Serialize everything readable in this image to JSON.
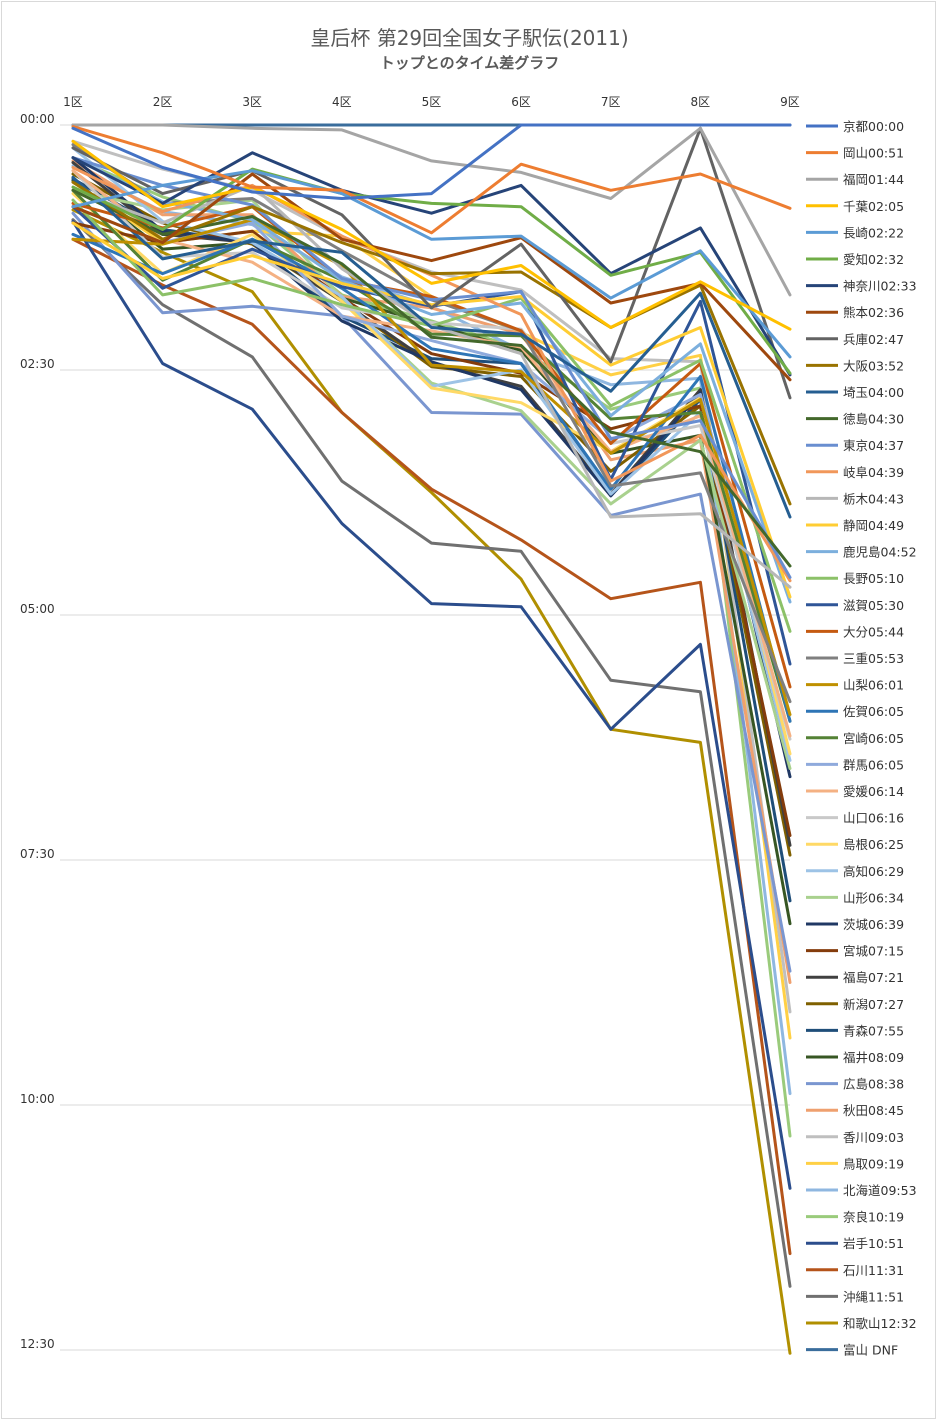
{
  "title": "皇后杯 第29回全国女子駅伝(2011)",
  "subtitle": "トップとのタイム差グラフ",
  "chart_data": {
    "type": "line",
    "categories": [
      "1区",
      "2区",
      "3区",
      "4区",
      "5区",
      "6区",
      "7区",
      "8区",
      "9区"
    ],
    "y_tick_labels": [
      "00:00",
      "02:30",
      "05:00",
      "07:30",
      "10:00",
      "12:30"
    ],
    "ylim_seconds": [
      0,
      750
    ],
    "y_inverted": true,
    "grid": "horizontal",
    "legend_position": "right",
    "units": "seconds behind leader",
    "series": [
      {
        "name": "京都",
        "legend": "京都00:00",
        "color": "#4472c4",
        "values": [
          2,
          26,
          41,
          45,
          42,
          0,
          0,
          0,
          0
        ]
      },
      {
        "name": "岡山",
        "legend": "岡山00:51",
        "color": "#ed7d31",
        "values": [
          1,
          17,
          38,
          40,
          66,
          24,
          40,
          30,
          51
        ]
      },
      {
        "name": "福岡",
        "legend": "福岡01:44",
        "color": "#a5a5a5",
        "values": [
          0,
          0,
          2,
          3,
          22,
          29,
          45,
          2,
          104
        ]
      },
      {
        "name": "千葉",
        "legend": "千葉02:05",
        "color": "#ffc000",
        "values": [
          10,
          50,
          38,
          64,
          97,
          86,
          124,
          96,
          125
        ]
      },
      {
        "name": "長崎",
        "legend": "長崎02:22",
        "color": "#5b9bd5",
        "values": [
          50,
          37,
          28,
          42,
          70,
          68,
          106,
          77,
          142
        ]
      },
      {
        "name": "愛知",
        "legend": "愛知02:32",
        "color": "#70ad47",
        "values": [
          38,
          64,
          27,
          42,
          48,
          50,
          92,
          78,
          152
        ]
      },
      {
        "name": "神奈川",
        "legend": "神奈川02:33",
        "color": "#264478",
        "values": [
          20,
          48,
          17,
          40,
          54,
          37,
          91,
          63,
          153
        ]
      },
      {
        "name": "熊本",
        "legend": "熊本02:36",
        "color": "#9e480e",
        "values": [
          50,
          72,
          30,
          70,
          83,
          69,
          109,
          97,
          156
        ]
      },
      {
        "name": "兵庫",
        "legend": "兵庫02:47",
        "color": "#636363",
        "values": [
          14,
          42,
          28,
          55,
          112,
          73,
          145,
          2,
          167
        ]
      },
      {
        "name": "大阪",
        "legend": "大阪03:52",
        "color": "#997300",
        "values": [
          35,
          70,
          50,
          72,
          91,
          90,
          124,
          98,
          232
        ]
      },
      {
        "name": "埼玉",
        "legend": "埼玉04:00",
        "color": "#255e91",
        "values": [
          32,
          82,
          71,
          78,
          124,
          128,
          163,
          103,
          240
        ]
      },
      {
        "name": "徳島",
        "legend": "徳島04:30",
        "color": "#43682b",
        "values": [
          40,
          67,
          56,
          85,
          130,
          135,
          188,
          200,
          270
        ]
      },
      {
        "name": "東京",
        "legend": "東京04:37",
        "color": "#698ed0",
        "values": [
          20,
          37,
          49,
          94,
          107,
          102,
          192,
          181,
          277
        ]
      },
      {
        "name": "岐阜",
        "legend": "岐阜04:39",
        "color": "#f1975a",
        "values": [
          26,
          53,
          37,
          68,
          92,
          116,
          218,
          190,
          279
        ]
      },
      {
        "name": "栃木",
        "legend": "栃木04:43",
        "color": "#b7b7b7",
        "values": [
          40,
          60,
          37,
          88,
          123,
          140,
          240,
          238,
          283
        ]
      },
      {
        "name": "静岡",
        "legend": "静岡04:49",
        "color": "#ffcd33",
        "values": [
          60,
          94,
          80,
          97,
          110,
          105,
          147,
          124,
          289
        ]
      },
      {
        "name": "鹿児島",
        "legend": "鹿児島04:52",
        "color": "#7cafdd",
        "values": [
          20,
          47,
          58,
          95,
          116,
          109,
          178,
          134,
          292
        ]
      },
      {
        "name": "長野",
        "legend": "長野05:10",
        "color": "#8cc168",
        "values": [
          46,
          104,
          94,
          110,
          123,
          106,
          172,
          144,
          310
        ]
      },
      {
        "name": "滋賀",
        "legend": "滋賀05:30",
        "color": "#2f5597",
        "values": [
          50,
          100,
          76,
          99,
          111,
          102,
          217,
          108,
          330
        ]
      },
      {
        "name": "大分",
        "legend": "大分05:44",
        "color": "#c55a11",
        "values": [
          48,
          63,
          50,
          95,
          105,
          126,
          195,
          146,
          344
        ]
      },
      {
        "name": "三重",
        "legend": "三重05:53",
        "color": "#7f7f7f",
        "values": [
          12,
          48,
          45,
          77,
          107,
          126,
          221,
          213,
          353
        ]
      },
      {
        "name": "山梨",
        "legend": "山梨06:01",
        "color": "#bf9000",
        "values": [
          70,
          73,
          58,
          86,
          147,
          151,
          201,
          168,
          361
        ]
      },
      {
        "name": "佐賀",
        "legend": "佐賀06:05",
        "color": "#2e75b6",
        "values": [
          67,
          91,
          70,
          100,
          137,
          146,
          223,
          154,
          365
        ]
      },
      {
        "name": "宮崎",
        "legend": "宮崎06:05",
        "color": "#548235",
        "values": [
          40,
          95,
          70,
          95,
          128,
          129,
          180,
          176,
          365
        ]
      },
      {
        "name": "群馬",
        "legend": "群馬06:05",
        "color": "#8faadc",
        "values": [
          50,
          72,
          60,
          117,
          132,
          146,
          193,
          165,
          365
        ]
      },
      {
        "name": "愛媛",
        "legend": "愛媛06:14",
        "color": "#f4b183",
        "values": [
          28,
          70,
          84,
          117,
          126,
          136,
          200,
          178,
          374
        ]
      },
      {
        "name": "山口",
        "legend": "山口06:16",
        "color": "#c9c9c9",
        "values": [
          28,
          81,
          78,
          112,
          121,
          125,
          195,
          184,
          376
        ]
      },
      {
        "name": "島根",
        "legend": "島根06:25",
        "color": "#ffd966",
        "values": [
          42,
          91,
          67,
          108,
          161,
          170,
          200,
          167,
          385
        ]
      },
      {
        "name": "高知",
        "legend": "高知06:29",
        "color": "#9dc3e6",
        "values": [
          14,
          59,
          72,
          105,
          160,
          150,
          226,
          176,
          389
        ]
      },
      {
        "name": "山形",
        "legend": "山形06:34",
        "color": "#a9d18e",
        "values": [
          40,
          52,
          46,
          106,
          158,
          175,
          232,
          193,
          394
        ]
      },
      {
        "name": "茨城",
        "legend": "茨城06:39",
        "color": "#203864",
        "values": [
          20,
          65,
          72,
          120,
          145,
          162,
          227,
          164,
          399
        ]
      },
      {
        "name": "宮城",
        "legend": "宮城07:15",
        "color": "#843c0c",
        "values": [
          60,
          72,
          65,
          106,
          140,
          152,
          186,
          172,
          435
        ]
      },
      {
        "name": "福島",
        "legend": "福島07:21",
        "color": "#404040",
        "values": [
          23,
          67,
          72,
          108,
          146,
          160,
          226,
          162,
          441
        ]
      },
      {
        "name": "新潟",
        "legend": "新潟07:27",
        "color": "#7f6000",
        "values": [
          30,
          60,
          73,
          108,
          148,
          154,
          212,
          172,
          447
        ]
      },
      {
        "name": "青森",
        "legend": "青森07:55",
        "color": "#1f4e79",
        "values": [
          33,
          64,
          72,
          117,
          143,
          146,
          227,
          168,
          475
        ]
      },
      {
        "name": "福井",
        "legend": "福井08:09",
        "color": "#375623",
        "values": [
          34,
          76,
          72,
          106,
          122,
          138,
          201,
          190,
          489
        ]
      },
      {
        "name": "広島",
        "legend": "広島08:38",
        "color": "#7a96d0",
        "values": [
          54,
          115,
          111,
          117,
          176,
          177,
          239,
          226,
          518
        ]
      },
      {
        "name": "秋田",
        "legend": "秋田08:45",
        "color": "#efa06f",
        "values": [
          22,
          55,
          55,
          105,
          112,
          128,
          205,
          193,
          525
        ]
      },
      {
        "name": "香川",
        "legend": "香川09:03",
        "color": "#bfbfbf",
        "values": [
          10,
          27,
          40,
          69,
          90,
          101,
          143,
          145,
          543
        ]
      },
      {
        "name": "鳥取",
        "legend": "鳥取09:19",
        "color": "#ffd045",
        "values": [
          35,
          72,
          65,
          68,
          105,
          127,
          153,
          141,
          559
        ]
      },
      {
        "name": "北海道",
        "legend": "北海道09:53",
        "color": "#8fb7e0",
        "values": [
          25,
          53,
          61,
          93,
          111,
          138,
          159,
          155,
          593
        ]
      },
      {
        "name": "奈良",
        "legend": "奈良10:19",
        "color": "#9acb7b",
        "values": [
          20,
          44,
          59,
          104,
          120,
          137,
          174,
          161,
          619
        ]
      },
      {
        "name": "岩手",
        "legend": "岩手10:51",
        "color": "#2b4d8c",
        "values": [
          59,
          146,
          174,
          244,
          293,
          295,
          370,
          318,
          651
        ]
      },
      {
        "name": "石川",
        "legend": "石川11:31",
        "color": "#b5541a",
        "values": [
          70,
          98,
          122,
          176,
          223,
          254,
          290,
          280,
          691
        ]
      },
      {
        "name": "沖縄",
        "legend": "沖縄11:51",
        "color": "#707070",
        "values": [
          58,
          110,
          142,
          218,
          256,
          261,
          340,
          347,
          711
        ]
      },
      {
        "name": "和歌山",
        "legend": "和歌山12:32",
        "color": "#b08f00",
        "values": [
          52,
          78,
          102,
          176,
          225,
          278,
          370,
          378,
          752
        ]
      },
      {
        "name": "富山",
        "legend": "富山 DNF",
        "color": "#3a6d9c",
        "values": [
          0,
          0,
          0,
          0,
          0,
          0,
          0,
          0,
          0
        ]
      }
    ]
  }
}
